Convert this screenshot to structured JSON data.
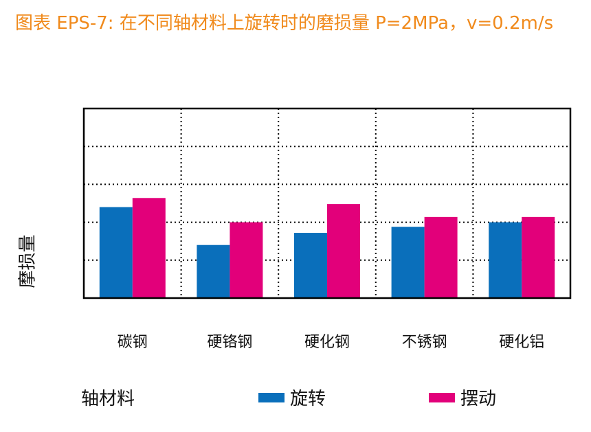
{
  "chart_data": {
    "type": "bar",
    "title": "图表 EPS-7: 在不同轴材料上旋转时的磨损量 P=2MPa，v=0.2m/s",
    "xlabel": "轴材料",
    "ylabel": "摩损量",
    "categories": [
      "碳钢",
      "硬铬钢",
      "硬化钢",
      "不锈钢",
      "硬化铝"
    ],
    "series": [
      {
        "name": "旋转",
        "color": "#0a6fbb",
        "values": [
          2.4,
          1.4,
          1.72,
          1.88,
          2.0
        ]
      },
      {
        "name": "摆动",
        "color": "#e2007a",
        "values": [
          2.64,
          2.0,
          2.48,
          2.14,
          2.14
        ]
      }
    ],
    "ylim": [
      0,
      5
    ],
    "grid": true,
    "grid_style": "dotted",
    "legend_position": "bottom"
  }
}
